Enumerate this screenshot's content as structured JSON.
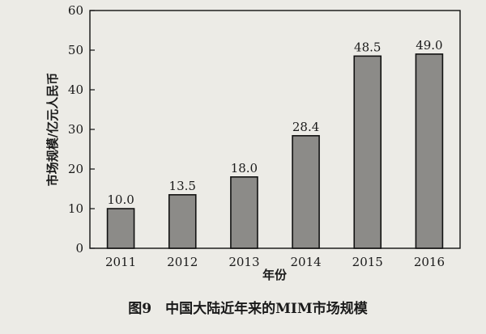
{
  "chart_data": {
    "type": "bar",
    "categories": [
      "2011",
      "2012",
      "2013",
      "2014",
      "2015",
      "2016"
    ],
    "values": [
      10.0,
      13.5,
      18.0,
      28.4,
      48.5,
      49.0
    ],
    "data_labels": [
      "10.0",
      "13.5",
      "18.0",
      "28.4",
      "48.5",
      "49.0"
    ],
    "xlabel": "年份",
    "ylabel": "市场规模/亿元人民币",
    "ylim": [
      0,
      60
    ],
    "yticks": [
      0,
      10,
      20,
      30,
      40,
      50,
      60
    ],
    "grid": false,
    "legend": "none",
    "caption": "图9　中国大陆近年来的MIM市场规模"
  },
  "colors": {
    "bar_fill": "#8c8b88",
    "bar_stroke": "#111111",
    "axis": "#111111",
    "background": "#ecebe6"
  }
}
